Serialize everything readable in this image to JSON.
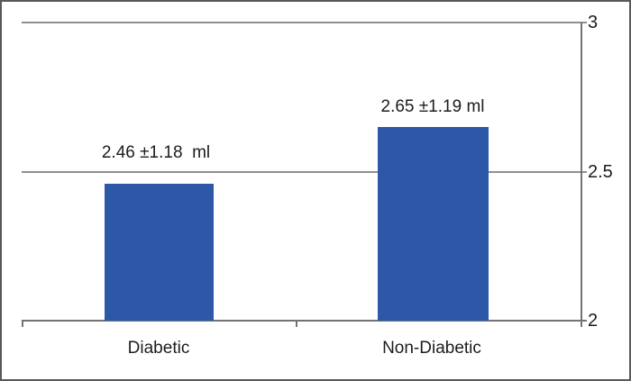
{
  "chart_data": {
    "type": "bar",
    "title": "",
    "xlabel": "",
    "ylabel": "",
    "categories": [
      "Diabetic",
      "Non-Diabetic"
    ],
    "values": [
      2.46,
      2.65
    ],
    "value_labels": [
      "2.46 ±1.18  ml",
      "2.65 ±1.19 ml"
    ],
    "errors": [
      1.18,
      1.19
    ],
    "unit": "ml",
    "ylim": [
      2,
      3
    ],
    "yticks": [
      2,
      2.5,
      3
    ],
    "ytick_labels": [
      "2",
      "2.5",
      "3"
    ],
    "y_axis_side": "right",
    "grid": true,
    "legend_position": "none",
    "bar_color": "#2D58A8"
  },
  "colors": {
    "bar": "#2D58A8",
    "gridline": "#8F8F8F",
    "axis": "#737373",
    "frame_border": "#595959",
    "text": "#1C1C1C",
    "background": "#FFFFFF"
  }
}
